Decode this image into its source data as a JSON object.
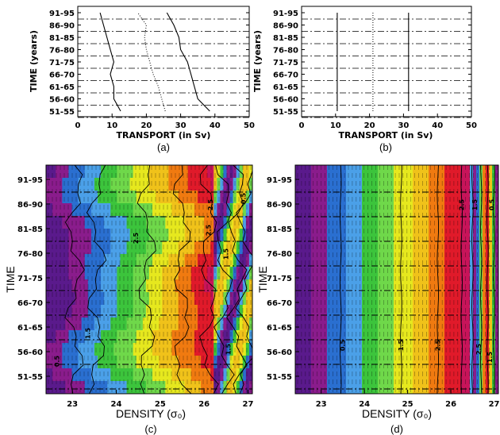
{
  "chart_data": [
    {
      "id": "a",
      "type": "line",
      "panel_label": "(a)",
      "xlabel": "TRANSPORT (in Sv)",
      "ylabel": "TIME (years)",
      "xlim": [
        0,
        50
      ],
      "x_ticks": [
        "0",
        "10",
        "20",
        "30",
        "40",
        "50"
      ],
      "categories": [
        "51-55",
        "56-60",
        "61-65",
        "66-70",
        "71-75",
        "76-80",
        "81-85",
        "86-90",
        "91-95"
      ],
      "grid": "horizontal dash-dot",
      "series": [
        {
          "style": "solid",
          "values": [
            12.5,
            10.5,
            10.5,
            9.5,
            10.5,
            9.5,
            8.5,
            7.5,
            6.5
          ]
        },
        {
          "style": "dotted",
          "values": [
            25.5,
            24.5,
            23.5,
            22,
            21,
            20,
            19.5,
            20,
            17.5
          ]
        },
        {
          "style": "solid",
          "values": [
            38.5,
            35,
            34,
            33,
            32,
            30,
            29.5,
            28,
            26
          ]
        }
      ]
    },
    {
      "id": "b",
      "type": "line",
      "panel_label": "(b)",
      "xlabel": "TRANSPORT (in Sv)",
      "ylabel": "TIME (years)",
      "xlim": [
        0,
        50
      ],
      "x_ticks": [
        "0",
        "10",
        "20",
        "30",
        "40",
        "50"
      ],
      "categories": [
        "51-55",
        "56-60",
        "61-65",
        "66-70",
        "71-75",
        "76-80",
        "81-85",
        "86-90",
        "91-95"
      ],
      "grid": "horizontal dash-dot",
      "series": [
        {
          "style": "solid",
          "values": [
            10.5,
            10.5,
            10.5,
            10.5,
            10.5,
            10.5,
            10.5,
            10.5,
            10.5
          ]
        },
        {
          "style": "dotted",
          "values": [
            21,
            21,
            21,
            21,
            21,
            21,
            21,
            21,
            21
          ]
        },
        {
          "style": "solid",
          "values": [
            31.5,
            31.5,
            31.5,
            31.5,
            31.5,
            31.5,
            31.5,
            31.5,
            31.5
          ]
        }
      ]
    },
    {
      "id": "c",
      "type": "heatmap",
      "panel_label": "(c)",
      "xlabel": "DENSITY (σ₀)",
      "ylabel": "TIME",
      "xlim": [
        22.4,
        27.1
      ],
      "x_ticks": [
        "23",
        "24",
        "25",
        "26",
        "27"
      ],
      "categories": [
        "51-55",
        "56-60",
        "61-65",
        "66-70",
        "71-75",
        "76-80",
        "81-85",
        "86-90",
        "91-95"
      ],
      "colorscale": [
        "#5a1a8c",
        "#8a1c8c",
        "#2a6fd0",
        "#4ba0e8",
        "#3cc43c",
        "#6fd84a",
        "#e6e81e",
        "#f0c21a",
        "#f07a10",
        "#e01a2a",
        "#c8145a",
        "#7a1a3a"
      ],
      "contour_labels": [
        "0.5",
        "1.5",
        "2.5",
        "2.5",
        "1.5",
        "2.5",
        "1.5",
        "0.5"
      ]
    },
    {
      "id": "d",
      "type": "heatmap",
      "panel_label": "(d)",
      "xlabel": "DENSITY (σ₀)",
      "ylabel": "TIME",
      "xlim": [
        22.4,
        27.1
      ],
      "x_ticks": [
        "23",
        "24",
        "25",
        "26",
        "27"
      ],
      "categories": [
        "51-55",
        "56-60",
        "61-65",
        "66-70",
        "71-75",
        "76-80",
        "81-85",
        "86-90",
        "91-95"
      ],
      "colorscale": [
        "#5a1a8c",
        "#8a1c8c",
        "#2a6fd0",
        "#4ba0e8",
        "#3cc43c",
        "#6fd84a",
        "#e6e81e",
        "#f0c21a",
        "#f07a10",
        "#e01a2a",
        "#c8145a",
        "#7a1a3a"
      ],
      "contour_labels": [
        "0.5",
        "1.5",
        "2.5",
        "2.5",
        "1.5",
        "2.5",
        "1.5",
        "0.5"
      ]
    }
  ]
}
